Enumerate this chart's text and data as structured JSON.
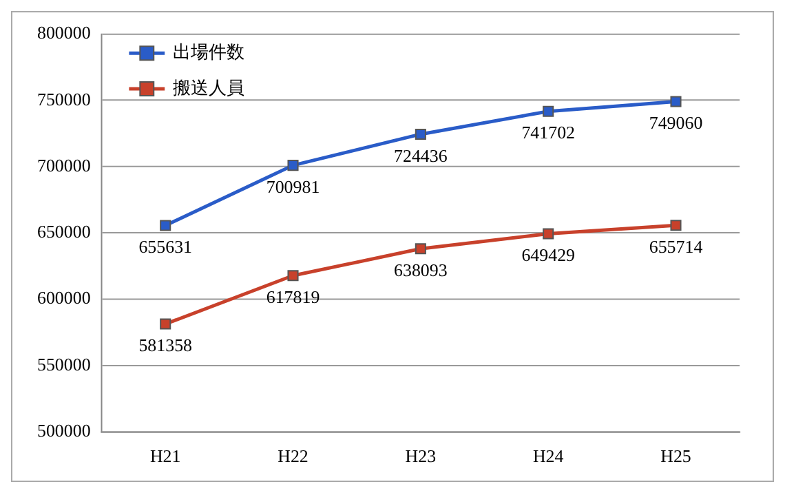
{
  "chart_data": {
    "type": "line",
    "categories": [
      "H21",
      "H22",
      "H23",
      "H24",
      "H25"
    ],
    "series": [
      {
        "name": "出場件数",
        "color": "#2a5cc8",
        "values": [
          655631,
          700981,
          724436,
          741702,
          749060
        ]
      },
      {
        "name": "搬送人員",
        "color": "#c8412b",
        "values": [
          581358,
          617819,
          638093,
          649429,
          655714
        ]
      }
    ],
    "ylim": [
      500000,
      800000
    ],
    "yticks": [
      500000,
      550000,
      600000,
      650000,
      700000,
      750000,
      800000
    ],
    "grid": "y",
    "legend": "top left",
    "marker": "square",
    "data_labels": true
  }
}
